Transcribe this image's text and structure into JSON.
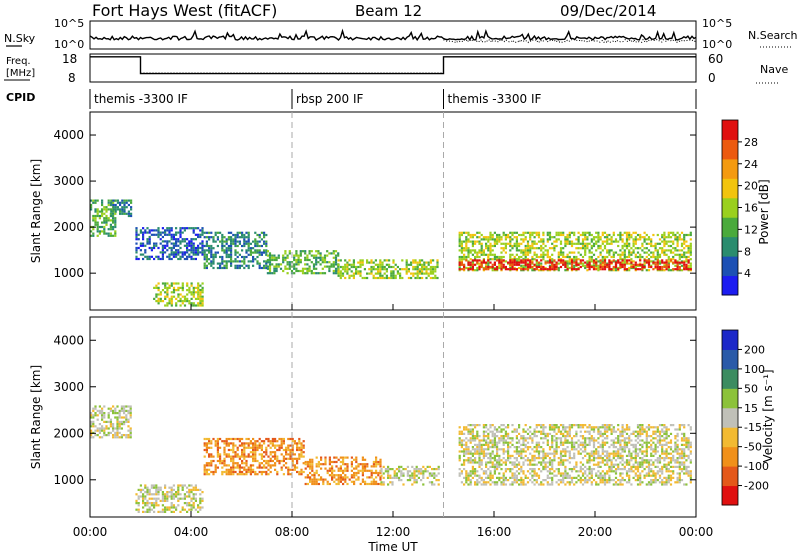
{
  "header": {
    "title": "Fort Hays West (fitACF)",
    "beam": "Beam 12",
    "date": "09/Dec/2014"
  },
  "nsky_panel": {
    "left_label": "N.Sky",
    "right_label": "N.Search",
    "left_ticks": [
      "10^5",
      "10^0"
    ],
    "right_ticks": [
      "10^5",
      "10^0"
    ]
  },
  "freq_panel": {
    "left_label_1": "Freq.",
    "left_label_2": "[MHz]",
    "right_label": "Nave",
    "left_ticks": [
      "18",
      "8"
    ],
    "right_ticks": [
      "60",
      "0"
    ],
    "freq_steps": [
      {
        "start_h": 0.0,
        "end_h": 2.0,
        "mhz": 17
      },
      {
        "start_h": 2.0,
        "end_h": 14.0,
        "mhz": 11
      },
      {
        "start_h": 14.0,
        "end_h": 24.0,
        "mhz": 17
      }
    ]
  },
  "cpid": {
    "label": "CPID",
    "segments": [
      {
        "start_h": 0.0,
        "name": "themis -3300 IF"
      },
      {
        "start_h": 8.0,
        "name": "rbsp 200 IF"
      },
      {
        "start_h": 14.0,
        "name": "themis -3300 IF"
      }
    ]
  },
  "colors": {
    "power_scale": [
      "#1c1cf0",
      "#1c50b4",
      "#2a8c6e",
      "#4aaa3c",
      "#9ad01e",
      "#f2c40e",
      "#f49a10",
      "#ec5a10",
      "#e01010"
    ],
    "velocity_scale": [
      "#1c28c8",
      "#2a5aa8",
      "#3c8c60",
      "#8cc23a",
      "#c0c0b8",
      "#f2ba32",
      "#f0901a",
      "#e4581a",
      "#e01010"
    ]
  },
  "chart_data": [
    {
      "type": "heatmap",
      "panel": "power",
      "ylabel": "Slant Range [km]",
      "xlabel": "",
      "xlim": [
        0,
        24
      ],
      "ylim": [
        200,
        4500
      ],
      "y_ticks": [
        "1000",
        "2000",
        "3000",
        "4000"
      ],
      "colorbar": {
        "label": "Power [dB]",
        "ticks": [
          "4",
          "8",
          "12",
          "16",
          "20",
          "24",
          "28"
        ],
        "range": [
          0,
          30
        ]
      },
      "regions": [
        {
          "t0": 0.0,
          "t1": 1.0,
          "r0": 1800,
          "r1": 2600,
          "level": 12
        },
        {
          "t0": 0.8,
          "t1": 1.6,
          "r0": 2250,
          "r1": 2600,
          "level": 6
        },
        {
          "t0": 1.8,
          "t1": 4.5,
          "r0": 1300,
          "r1": 2000,
          "level": 5
        },
        {
          "t0": 2.5,
          "t1": 4.5,
          "r0": 300,
          "r1": 800,
          "level": 14
        },
        {
          "t0": 4.5,
          "t1": 7.0,
          "r0": 1100,
          "r1": 1900,
          "level": 6
        },
        {
          "t0": 7.0,
          "t1": 9.8,
          "r0": 1000,
          "r1": 1500,
          "level": 12
        },
        {
          "t0": 9.8,
          "t1": 13.8,
          "r0": 900,
          "r1": 1300,
          "level": 14
        },
        {
          "t0": 14.6,
          "t1": 23.8,
          "r0": 1050,
          "r1": 1900,
          "level": 13
        },
        {
          "t0": 14.6,
          "t1": 23.8,
          "r0": 1100,
          "r1": 1300,
          "level": 27
        }
      ]
    },
    {
      "type": "heatmap",
      "panel": "velocity",
      "ylabel": "Slant Range [km]",
      "xlabel": "Time UT",
      "xlim": [
        0,
        24
      ],
      "ylim": [
        200,
        4500
      ],
      "x_ticks": [
        "00:00",
        "04:00",
        "08:00",
        "12:00",
        "16:00",
        "20:00",
        "00:00"
      ],
      "y_ticks": [
        "1000",
        "2000",
        "3000",
        "4000"
      ],
      "colorbar": {
        "label": "Velocity [m s⁻¹]",
        "ticks": [
          "200",
          "100",
          "50",
          "15",
          "-15",
          "-50",
          "-100",
          "-200"
        ]
      },
      "regions": [
        {
          "t0": 0.0,
          "t1": 1.6,
          "r0": 1900,
          "r1": 2600,
          "level": 4
        },
        {
          "t0": 1.8,
          "t1": 4.5,
          "r0": 300,
          "r1": 900,
          "level": 4
        },
        {
          "t0": 4.5,
          "t1": 8.5,
          "r0": 1100,
          "r1": 1900,
          "level": 6
        },
        {
          "t0": 8.5,
          "t1": 11.5,
          "r0": 900,
          "r1": 1500,
          "level": 6
        },
        {
          "t0": 11.5,
          "t1": 13.8,
          "r0": 900,
          "r1": 1300,
          "level": 4
        },
        {
          "t0": 14.6,
          "t1": 23.8,
          "r0": 900,
          "r1": 2200,
          "level": 4
        }
      ]
    }
  ]
}
